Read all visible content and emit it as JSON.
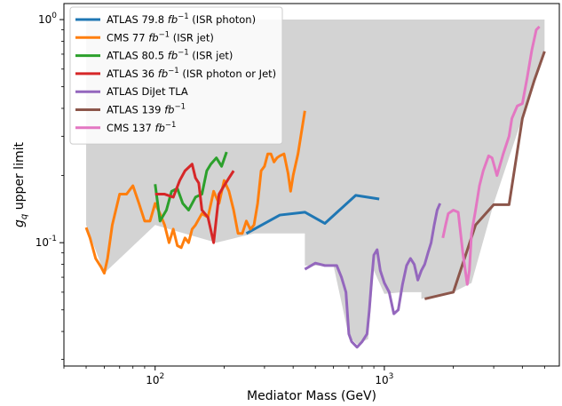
{
  "chart_data": {
    "type": "line",
    "title": "",
    "xlabel": "Mediator Mass (GeV)",
    "ylabel": "g_q upper limit",
    "xscale": "log",
    "yscale": "log",
    "xlim": [
      40,
      5800
    ],
    "ylim": [
      0.028,
      1.18
    ],
    "grid": false,
    "legend_position": "top-left",
    "x_tick_labels": [
      "10^2",
      "10^3"
    ],
    "y_tick_labels": [
      "10^-1",
      "10^0"
    ],
    "excluded_region": {
      "color": "#d3d3d3",
      "top": [
        [
          50,
          1.0
        ],
        [
          5000,
          1.0
        ]
      ],
      "bottom": [
        [
          50,
          0.12
        ],
        [
          60,
          0.073
        ],
        [
          100,
          0.12
        ],
        [
          185,
          0.1
        ],
        [
          270,
          0.11
        ],
        [
          450,
          0.11
        ],
        [
          450,
          0.079
        ],
        [
          600,
          0.079
        ],
        [
          700,
          0.038
        ],
        [
          760,
          0.035
        ],
        [
          850,
          0.037
        ],
        [
          900,
          0.075
        ],
        [
          1000,
          0.059
        ],
        [
          1200,
          0.06
        ],
        [
          1450,
          0.06
        ],
        [
          1450,
          0.056
        ],
        [
          2000,
          0.06
        ],
        [
          2400,
          0.066
        ],
        [
          3000,
          0.15
        ],
        [
          5000,
          0.72
        ]
      ]
    },
    "series": [
      {
        "name": "ATLAS 79.8 fb^-1 (ISR photon)",
        "legend_main": "ATLAS 79.8 ",
        "legend_fb": "fb",
        "legend_exp": "−1",
        "legend_tail": " (ISR photon)",
        "color": "#1f77b4",
        "points": [
          [
            250,
            0.11
          ],
          [
            350,
            0.133
          ],
          [
            450,
            0.137
          ],
          [
            550,
            0.122
          ],
          [
            750,
            0.163
          ],
          [
            950,
            0.157
          ]
        ]
      },
      {
        "name": "CMS 77 fb^-1 (ISR jet)",
        "legend_main": "CMS 77 ",
        "legend_fb": "fb",
        "legend_exp": "−1",
        "legend_tail": " (ISR jet)",
        "color": "#ff7f0e",
        "points": [
          [
            50,
            0.117
          ],
          [
            52,
            0.105
          ],
          [
            55,
            0.085
          ],
          [
            58,
            0.078
          ],
          [
            60,
            0.073
          ],
          [
            62,
            0.085
          ],
          [
            65,
            0.12
          ],
          [
            70,
            0.165
          ],
          [
            75,
            0.165
          ],
          [
            80,
            0.18
          ],
          [
            85,
            0.15
          ],
          [
            90,
            0.125
          ],
          [
            95,
            0.125
          ],
          [
            100,
            0.15
          ],
          [
            105,
            0.135
          ],
          [
            110,
            0.12
          ],
          [
            115,
            0.1
          ],
          [
            120,
            0.115
          ],
          [
            125,
            0.097
          ],
          [
            130,
            0.095
          ],
          [
            135,
            0.105
          ],
          [
            140,
            0.1
          ],
          [
            145,
            0.115
          ],
          [
            150,
            0.12
          ],
          [
            160,
            0.135
          ],
          [
            170,
            0.13
          ],
          [
            180,
            0.17
          ],
          [
            190,
            0.15
          ],
          [
            200,
            0.19
          ],
          [
            210,
            0.17
          ],
          [
            220,
            0.14
          ],
          [
            230,
            0.11
          ],
          [
            240,
            0.11
          ],
          [
            250,
            0.125
          ],
          [
            260,
            0.115
          ],
          [
            270,
            0.12
          ],
          [
            280,
            0.15
          ],
          [
            290,
            0.21
          ],
          [
            300,
            0.22
          ],
          [
            310,
            0.25
          ],
          [
            320,
            0.25
          ],
          [
            330,
            0.23
          ],
          [
            340,
            0.24
          ],
          [
            350,
            0.245
          ],
          [
            365,
            0.25
          ],
          [
            380,
            0.205
          ],
          [
            390,
            0.17
          ],
          [
            400,
            0.2
          ],
          [
            420,
            0.25
          ],
          [
            450,
            0.39
          ]
        ]
      },
      {
        "name": "ATLAS 80.5 fb^-1 (ISR jet)",
        "legend_main": "ATLAS 80.5 ",
        "legend_fb": "fb",
        "legend_exp": "−1",
        "legend_tail": " (ISR jet)",
        "color": "#2ca02c",
        "points": [
          [
            100,
            0.183
          ],
          [
            105,
            0.125
          ],
          [
            112,
            0.14
          ],
          [
            118,
            0.17
          ],
          [
            125,
            0.175
          ],
          [
            132,
            0.15
          ],
          [
            140,
            0.14
          ],
          [
            150,
            0.16
          ],
          [
            160,
            0.165
          ],
          [
            168,
            0.21
          ],
          [
            175,
            0.225
          ],
          [
            185,
            0.24
          ],
          [
            195,
            0.22
          ],
          [
            205,
            0.255
          ]
        ]
      },
      {
        "name": "ATLAS 36 fb^-1 (ISR photon or Jet)",
        "legend_main": "ATLAS 36 ",
        "legend_fb": "fb",
        "legend_exp": "−1",
        "legend_tail": " (ISR photon or Jet)",
        "color": "#d62728",
        "points": [
          [
            100,
            0.165
          ],
          [
            110,
            0.165
          ],
          [
            120,
            0.16
          ],
          [
            128,
            0.19
          ],
          [
            135,
            0.21
          ],
          [
            145,
            0.225
          ],
          [
            150,
            0.195
          ],
          [
            155,
            0.185
          ],
          [
            160,
            0.14
          ],
          [
            170,
            0.13
          ],
          [
            180,
            0.1
          ],
          [
            190,
            0.165
          ],
          [
            200,
            0.18
          ],
          [
            210,
            0.195
          ],
          [
            220,
            0.21
          ]
        ]
      },
      {
        "name": "ATLAS DiJet TLA",
        "legend_main": "ATLAS DiJet TLA",
        "legend_fb": "",
        "legend_exp": "",
        "legend_tail": "",
        "color": "#9467bd",
        "points": [
          [
            450,
            0.076
          ],
          [
            500,
            0.081
          ],
          [
            550,
            0.079
          ],
          [
            620,
            0.079
          ],
          [
            650,
            0.07
          ],
          [
            680,
            0.06
          ],
          [
            700,
            0.039
          ],
          [
            720,
            0.036
          ],
          [
            760,
            0.034
          ],
          [
            800,
            0.036
          ],
          [
            840,
            0.039
          ],
          [
            860,
            0.05
          ],
          [
            880,
            0.068
          ],
          [
            900,
            0.088
          ],
          [
            930,
            0.093
          ],
          [
            960,
            0.075
          ],
          [
            1000,
            0.066
          ],
          [
            1050,
            0.06
          ],
          [
            1100,
            0.048
          ],
          [
            1150,
            0.05
          ],
          [
            1200,
            0.065
          ],
          [
            1250,
            0.079
          ],
          [
            1300,
            0.085
          ],
          [
            1350,
            0.08
          ],
          [
            1400,
            0.068
          ],
          [
            1450,
            0.075
          ],
          [
            1500,
            0.08
          ],
          [
            1550,
            0.09
          ],
          [
            1600,
            0.1
          ],
          [
            1650,
            0.12
          ],
          [
            1700,
            0.14
          ],
          [
            1750,
            0.15
          ]
        ]
      },
      {
        "name": "ATLAS 139 fb^-1",
        "legend_main": "ATLAS 139 ",
        "legend_fb": "fb",
        "legend_exp": "−1",
        "legend_tail": "",
        "color": "#8c564b",
        "points": [
          [
            1500,
            0.056
          ],
          [
            2000,
            0.06
          ],
          [
            2500,
            0.12
          ],
          [
            3000,
            0.148
          ],
          [
            3500,
            0.148
          ],
          [
            4000,
            0.36
          ],
          [
            4500,
            0.53
          ],
          [
            5000,
            0.72
          ]
        ]
      },
      {
        "name": "CMS 137 fb^-1",
        "legend_main": "CMS 137 ",
        "legend_fb": "fb",
        "legend_exp": "−1",
        "legend_tail": "",
        "color": "#e377c2",
        "points": [
          [
            1800,
            0.105
          ],
          [
            1850,
            0.12
          ],
          [
            1900,
            0.135
          ],
          [
            2000,
            0.14
          ],
          [
            2100,
            0.137
          ],
          [
            2200,
            0.09
          ],
          [
            2300,
            0.065
          ],
          [
            2350,
            0.075
          ],
          [
            2400,
            0.11
          ],
          [
            2500,
            0.14
          ],
          [
            2600,
            0.18
          ],
          [
            2700,
            0.21
          ],
          [
            2850,
            0.245
          ],
          [
            2950,
            0.24
          ],
          [
            3100,
            0.2
          ],
          [
            3300,
            0.25
          ],
          [
            3500,
            0.3
          ],
          [
            3600,
            0.36
          ],
          [
            3800,
            0.41
          ],
          [
            4000,
            0.42
          ],
          [
            4200,
            0.55
          ],
          [
            4400,
            0.73
          ],
          [
            4600,
            0.9
          ],
          [
            4750,
            0.93
          ]
        ]
      }
    ]
  }
}
